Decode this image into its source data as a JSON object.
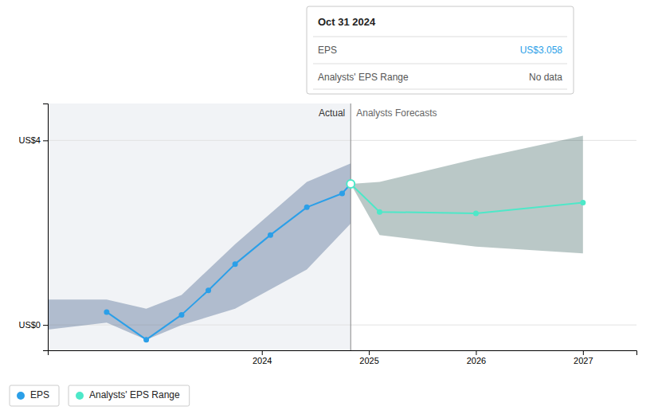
{
  "chart_data": {
    "type": "line",
    "xlim": [
      2022.0,
      2027.5
    ],
    "ylim": [
      -0.55,
      4.8
    ],
    "xticks": [
      2024,
      2025,
      2026,
      2027
    ],
    "yticks": [
      {
        "value": 0,
        "label": "US$0"
      },
      {
        "value": 4,
        "label": "US$4"
      }
    ],
    "grid": true,
    "legend": "lower left",
    "divider_x": 2024.83,
    "annotations": [
      "Actual",
      "Analysts Forecasts"
    ],
    "series": [
      {
        "name": "EPS",
        "type": "line",
        "marker": "circle",
        "color": "#2b9fe8",
        "x": [
          2022.55,
          2022.92,
          2023.25,
          2023.5,
          2023.75,
          2024.08,
          2024.42,
          2024.75,
          2024.83
        ],
        "values": [
          0.28,
          -0.32,
          0.22,
          0.75,
          1.32,
          1.95,
          2.55,
          2.85,
          3.058
        ]
      },
      {
        "name": "Analysts' EPS Range",
        "type": "line",
        "marker": "circle",
        "color": "#4de8c8",
        "x": [
          2024.83,
          2025.1,
          2026.0,
          2027.0
        ],
        "values": [
          3.058,
          2.45,
          2.42,
          2.65
        ]
      },
      {
        "type": "area",
        "color": "#1a3f70",
        "x": [
          2022.0,
          2022.55,
          2022.92,
          2023.25,
          2023.75,
          2024.42,
          2024.83
        ],
        "upper": [
          0.55,
          0.55,
          0.35,
          0.65,
          1.75,
          3.1,
          3.5
        ],
        "lower": [
          -0.1,
          0.05,
          -0.32,
          0.0,
          0.35,
          1.2,
          2.2
        ]
      },
      {
        "type": "area",
        "color": "#1a4a45",
        "x": [
          2024.83,
          2025.1,
          2026.0,
          2027.0
        ],
        "upper": [
          3.058,
          3.1,
          3.6,
          4.1
        ],
        "lower": [
          3.058,
          1.95,
          1.7,
          1.55
        ]
      }
    ],
    "tooltip": {
      "title": "Oct 31 2024",
      "rows": [
        {
          "label": "EPS",
          "value": "US$3.058"
        },
        {
          "label": "Analysts' EPS Range",
          "value": "No data"
        }
      ]
    }
  }
}
